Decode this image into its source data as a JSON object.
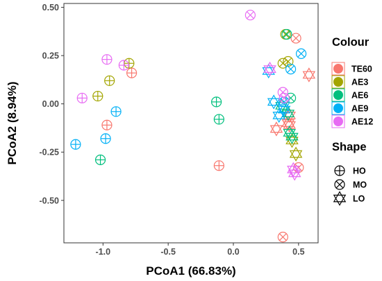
{
  "chart_data": {
    "type": "scatter",
    "xlabel": "PCoA1 (66.83%)",
    "ylabel": "PCoA2 (8.94%)",
    "xlim": [
      -1.3,
      0.65
    ],
    "ylim": [
      -0.72,
      0.52
    ],
    "x_ticks": [
      -1.0,
      -0.5,
      0.0,
      0.5
    ],
    "x_tick_labels": [
      "-1.0",
      "-0.5",
      "0.0",
      "0.5"
    ],
    "y_ticks": [
      -0.5,
      -0.25,
      0.0,
      0.25,
      0.5
    ],
    "y_tick_labels": [
      "-0.50",
      "-0.25",
      "0.00",
      "0.25",
      "0.50"
    ],
    "grid": false,
    "legend_placement": "right",
    "legend": {
      "colour_title": "Colour",
      "shape_title": "Shape",
      "colour_entries": [
        {
          "label": "TE60",
          "color": "#F8766D"
        },
        {
          "label": "AE3",
          "color": "#A3A500"
        },
        {
          "label": "AE6",
          "color": "#00BF7D"
        },
        {
          "label": "AE9",
          "color": "#00B0F6"
        },
        {
          "label": "AE12",
          "color": "#E76BF3"
        }
      ],
      "shape_entries": [
        {
          "label": "HO",
          "shape": "circle-plus"
        },
        {
          "label": "MO",
          "shape": "circle-cross"
        },
        {
          "label": "LO",
          "shape": "star-of-david"
        }
      ]
    },
    "series": [
      {
        "colour": "TE60",
        "shape": "HO",
        "points": [
          [
            -0.97,
            -0.11
          ],
          [
            -0.11,
            -0.32
          ],
          [
            -0.78,
            0.16
          ]
        ]
      },
      {
        "colour": "TE60",
        "shape": "MO",
        "points": [
          [
            0.38,
            -0.69
          ],
          [
            0.48,
            0.34
          ],
          [
            0.5,
            -0.33
          ]
        ]
      },
      {
        "colour": "TE60",
        "shape": "LO",
        "points": [
          [
            0.58,
            0.15
          ],
          [
            0.33,
            -0.13
          ],
          [
            0.43,
            -0.06
          ],
          [
            0.42,
            -0.1
          ],
          [
            0.43,
            -0.11
          ]
        ]
      },
      {
        "colour": "AE3",
        "shape": "HO",
        "points": [
          [
            -1.04,
            0.04
          ],
          [
            -0.95,
            0.12
          ],
          [
            -0.8,
            0.21
          ]
        ]
      },
      {
        "colour": "AE3",
        "shape": "MO",
        "points": [
          [
            0.38,
            0.21
          ],
          [
            0.42,
            0.22
          ],
          [
            0.4,
            0.36
          ]
        ]
      },
      {
        "colour": "AE3",
        "shape": "LO",
        "points": [
          [
            0.48,
            -0.26
          ],
          [
            0.45,
            -0.19
          ]
        ]
      },
      {
        "colour": "AE6",
        "shape": "HO",
        "points": [
          [
            -1.02,
            -0.29
          ],
          [
            -0.13,
            0.01
          ],
          [
            -0.11,
            -0.08
          ]
        ]
      },
      {
        "colour": "AE6",
        "shape": "MO",
        "points": [
          [
            0.41,
            0.36
          ],
          [
            0.44,
            0.03
          ]
        ]
      },
      {
        "colour": "AE6",
        "shape": "LO",
        "points": [
          [
            0.42,
            -0.05
          ],
          [
            0.43,
            -0.15
          ],
          [
            0.45,
            -0.17
          ],
          [
            0.37,
            -0.01
          ]
        ]
      },
      {
        "colour": "AE9",
        "shape": "HO",
        "points": [
          [
            -1.21,
            -0.21
          ],
          [
            -0.98,
            -0.18
          ],
          [
            -0.9,
            -0.04
          ]
        ]
      },
      {
        "colour": "AE9",
        "shape": "MO",
        "points": [
          [
            0.52,
            0.26
          ],
          [
            0.44,
            0.18
          ],
          [
            0.39,
            0.01
          ]
        ]
      },
      {
        "colour": "AE9",
        "shape": "LO",
        "points": [
          [
            0.27,
            0.17
          ],
          [
            0.31,
            0.01
          ],
          [
            0.35,
            -0.06
          ],
          [
            0.39,
            -0.03
          ]
        ]
      },
      {
        "colour": "AE12",
        "shape": "HO",
        "points": [
          [
            -1.16,
            0.03
          ],
          [
            -0.97,
            0.23
          ],
          [
            -0.84,
            0.2
          ]
        ]
      },
      {
        "colour": "AE12",
        "shape": "MO",
        "points": [
          [
            0.13,
            0.46
          ],
          [
            0.38,
            0.06
          ],
          [
            0.39,
            0.03
          ]
        ]
      },
      {
        "colour": "AE12",
        "shape": "LO",
        "points": [
          [
            0.28,
            0.18
          ],
          [
            0.46,
            -0.34
          ],
          [
            0.47,
            -0.36
          ]
        ]
      }
    ]
  }
}
